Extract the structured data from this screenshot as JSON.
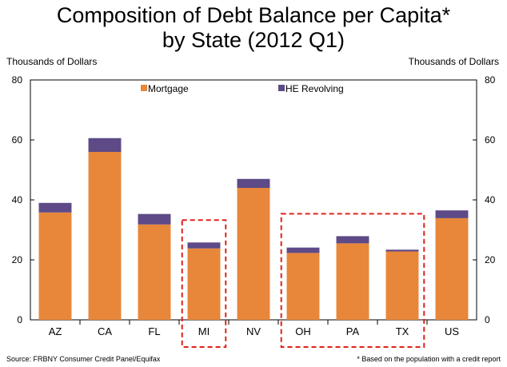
{
  "title_line1": "Composition of Debt Balance per Capita*",
  "title_line2": "by State (2012 Q1)",
  "unit_left": "Thousands of Dollars",
  "unit_right": "Thousands of Dollars",
  "source": "Source: FRBNY Consumer Credit Panel/Equifax",
  "footnote": "* Based on the population with a credit report",
  "colors": {
    "mortgage": "#E8873A",
    "he_revolving": "#5E4A86",
    "highlight_box": "#E0201B"
  },
  "chart_data": {
    "type": "bar",
    "stacked": true,
    "categories": [
      "AZ",
      "CA",
      "FL",
      "MI",
      "NV",
      "OH",
      "PA",
      "TX",
      "US"
    ],
    "series": [
      {
        "name": "Mortgage",
        "values": [
          35.8,
          56.0,
          31.8,
          23.8,
          44.0,
          22.3,
          25.5,
          22.8,
          33.9
        ]
      },
      {
        "name": "HE Revolving",
        "values": [
          3.2,
          4.6,
          3.5,
          2.0,
          3.0,
          1.8,
          2.4,
          0.6,
          2.6
        ]
      }
    ],
    "ylim": [
      0,
      80
    ],
    "yticks": [
      "0",
      "20",
      "40",
      "60",
      "80"
    ],
    "ylabel": "Thousands of Dollars",
    "legend_position": "top",
    "grid": false,
    "highlighted_categories": [
      [
        "MI"
      ],
      [
        "OH",
        "PA",
        "TX"
      ]
    ]
  }
}
